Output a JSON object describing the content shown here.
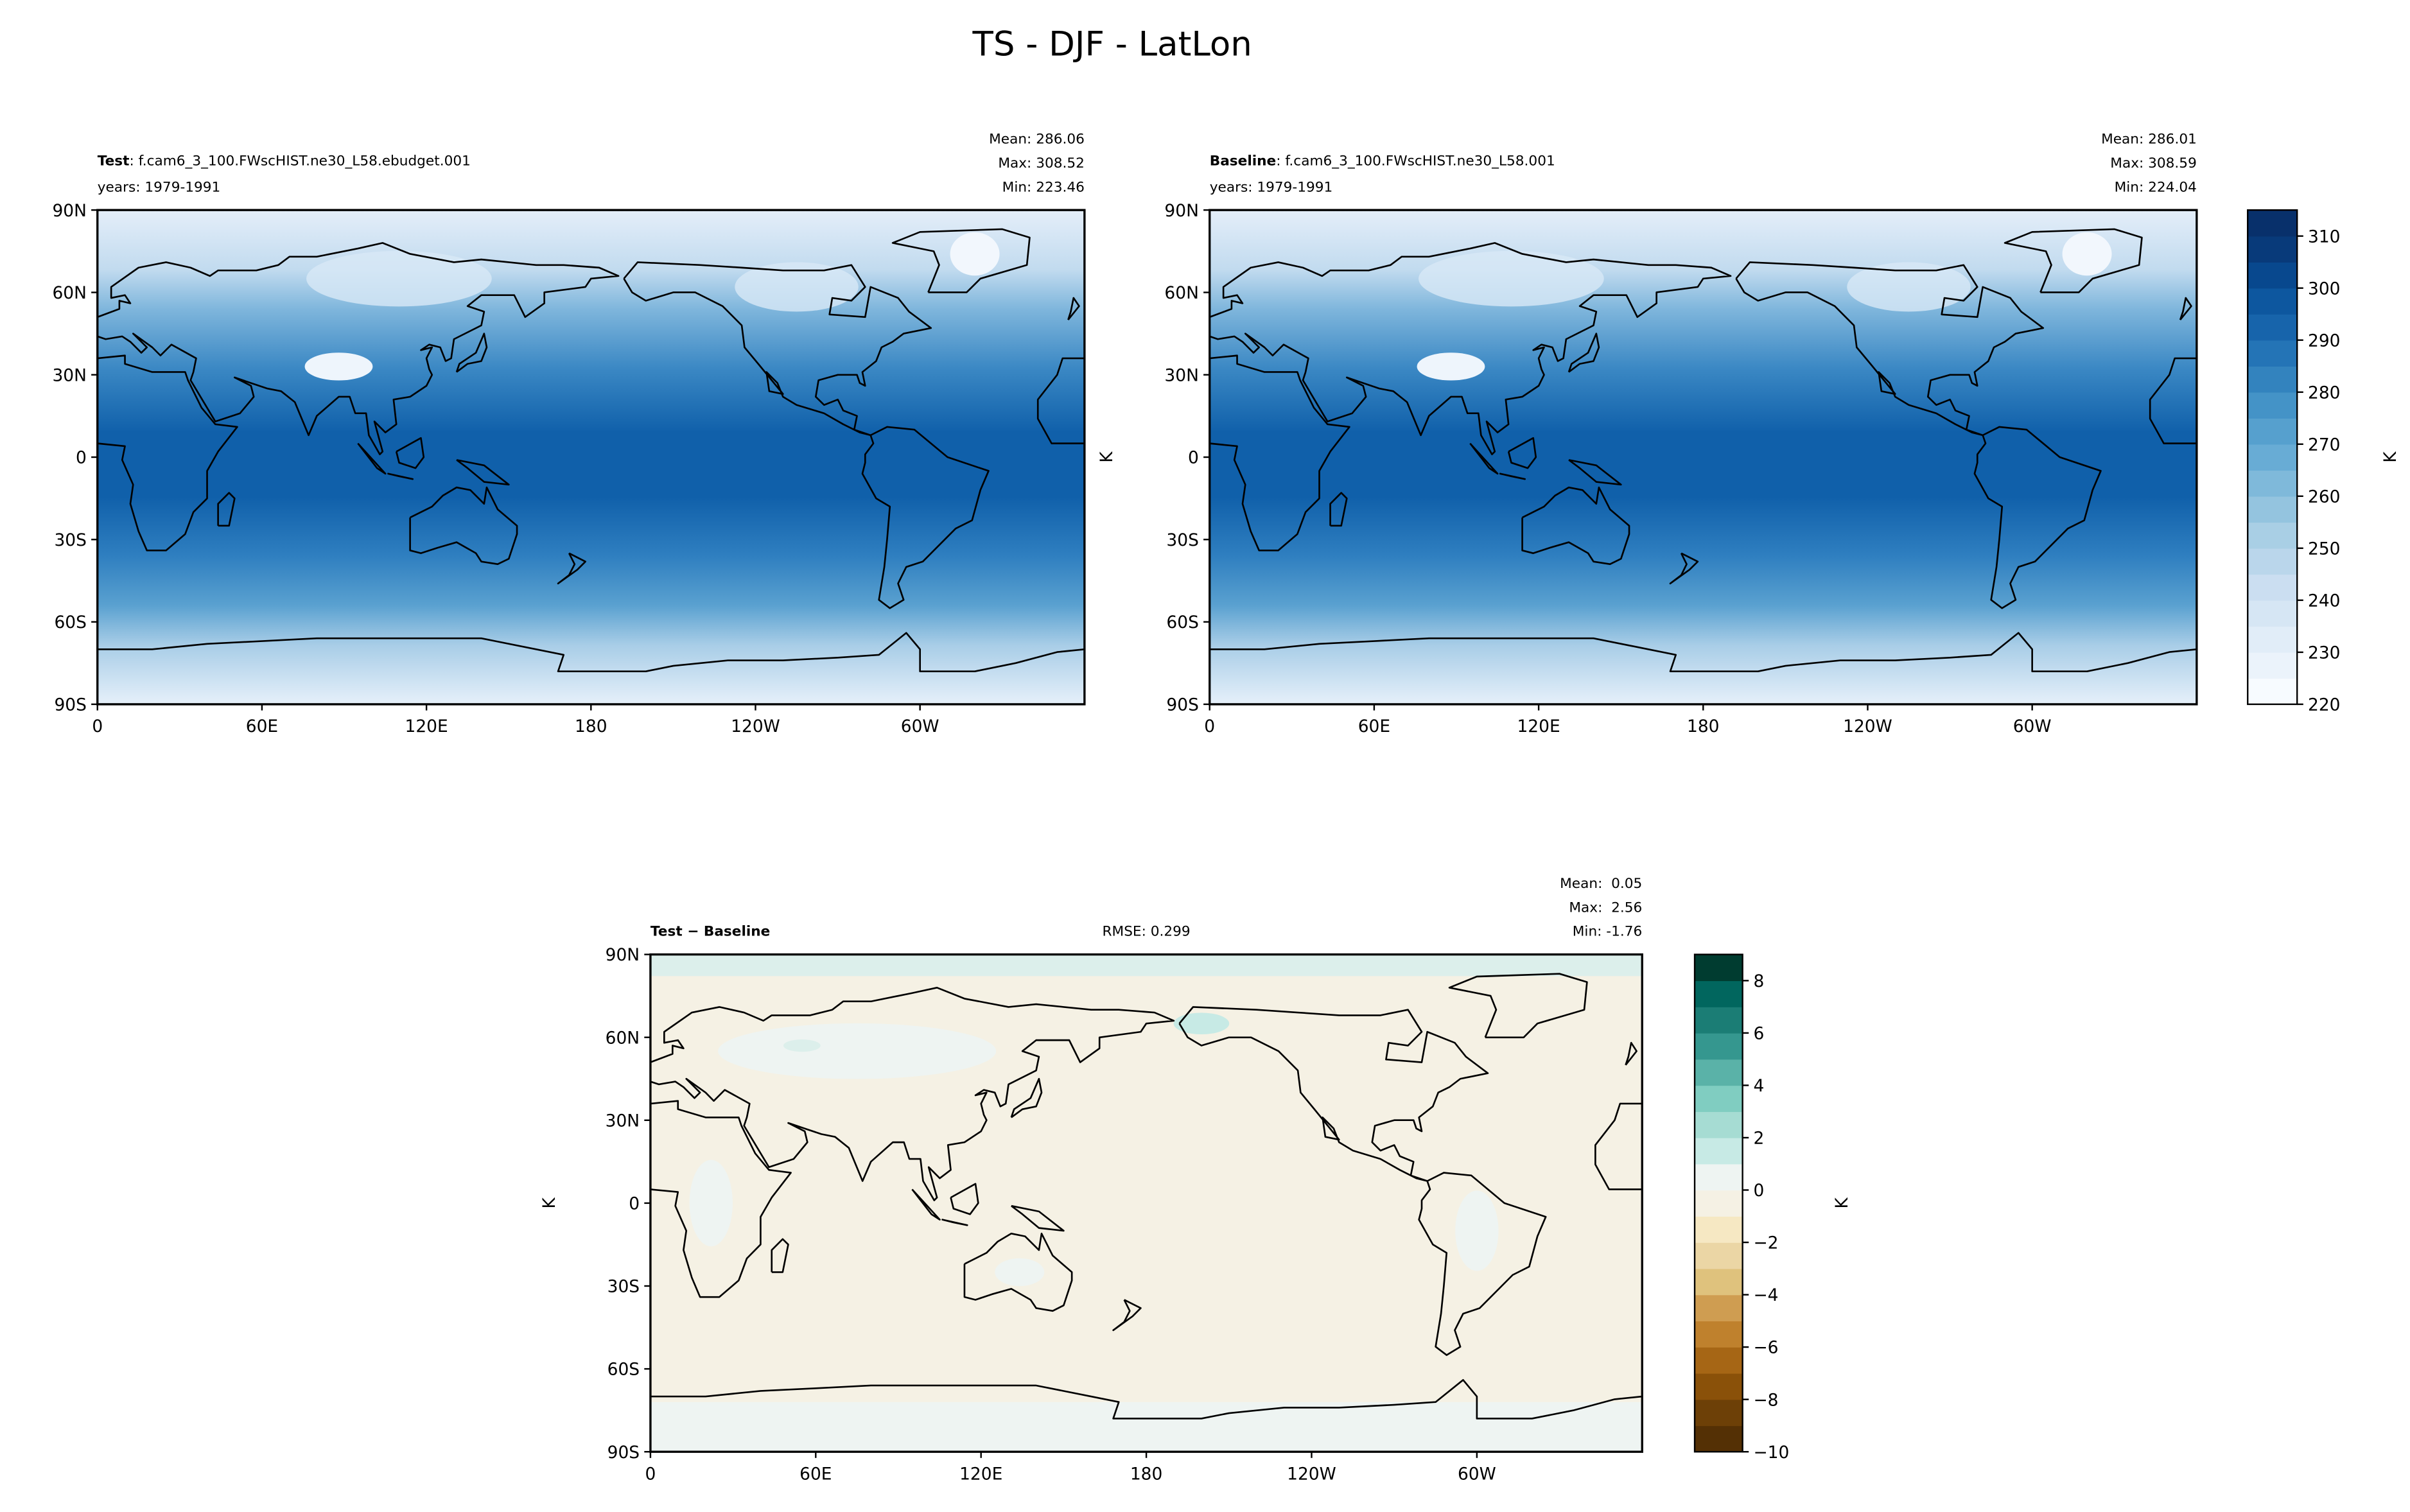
{
  "title": "TS - DJF - LatLon",
  "map_axes": {
    "xlim": [
      0,
      360
    ],
    "ylim": [
      -90,
      90
    ],
    "xticks": [
      0,
      {
        "value": 60,
        "label": "60E"
      },
      {
        "value": 120,
        "label": "120E"
      },
      180,
      {
        "value": 240,
        "label": "120W"
      },
      {
        "value": 300,
        "label": "60W"
      }
    ],
    "yticks": [
      {
        "value": 90,
        "label": "90N"
      },
      {
        "value": 60,
        "label": "60N"
      },
      {
        "value": 30,
        "label": "30N"
      },
      0,
      {
        "value": -30,
        "label": "30S"
      },
      {
        "value": -60,
        "label": "60S"
      },
      {
        "value": -90,
        "label": "90S"
      }
    ]
  },
  "panels": [
    {
      "label": "Test",
      "name": ": f.cam6_3_100.FWscHIST.ne30_L58.ebudget.001",
      "years": "years: 1979-1991",
      "stats": [
        "Mean: 286.06",
        "Max: 308.52",
        "Min: 223.46"
      ]
    },
    {
      "label": "Baseline",
      "name": ": f.cam6_3_100.FWscHIST.ne30_L58.001",
      "years": "years: 1979-1991",
      "stats": [
        "Mean: 286.01",
        "Max: 308.59",
        "Min: 224.04"
      ],
      "ylabel": "K"
    },
    {
      "label": "Test − Baseline",
      "rmse": "RMSE: 0.299",
      "stats": [
        "Mean:  0.05",
        "Max:  2.56",
        "Min: -1.76"
      ],
      "ylabel": "K"
    }
  ],
  "colorbars": [
    {
      "label": "K",
      "lim": [
        220,
        315
      ],
      "ticks": [
        220,
        230,
        240,
        250,
        260,
        270,
        280,
        290,
        300,
        310
      ],
      "colors": [
        "#f7fbff",
        "#ebf3fb",
        "#e1edf8",
        "#d6e6f4",
        "#cbdef1",
        "#bad6eb",
        "#a9cfe5",
        "#94c4df",
        "#7fb9da",
        "#68acd5",
        "#56a0ce",
        "#4493c7",
        "#3383be",
        "#2474b6",
        "#1764ab",
        "#0d579f",
        "#08488e",
        "#083a7a",
        "#08306b"
      ]
    },
    {
      "label": "K",
      "lim": [
        -10,
        9
      ],
      "ticks": [
        {
          "value": -10,
          "label": "−10"
        },
        {
          "value": -8,
          "label": "−8"
        },
        {
          "value": -6,
          "label": "−6"
        },
        {
          "value": -4,
          "label": "−4"
        },
        {
          "value": -2,
          "label": "−2"
        },
        0,
        2,
        4,
        6,
        8
      ],
      "colors": [
        "#543005",
        "#6d4007",
        "#8a5109",
        "#a66615",
        "#bf812d",
        "#cf9d51",
        "#dfc27d",
        "#ebd6a5",
        "#f6e8c3",
        "#f5f1e4",
        "#eef4f2",
        "#c7eae5",
        "#a6dcd3",
        "#80cdc1",
        "#5ab2a8",
        "#35978f",
        "#1b7d75",
        "#01665e",
        "#003c30"
      ]
    }
  ]
}
